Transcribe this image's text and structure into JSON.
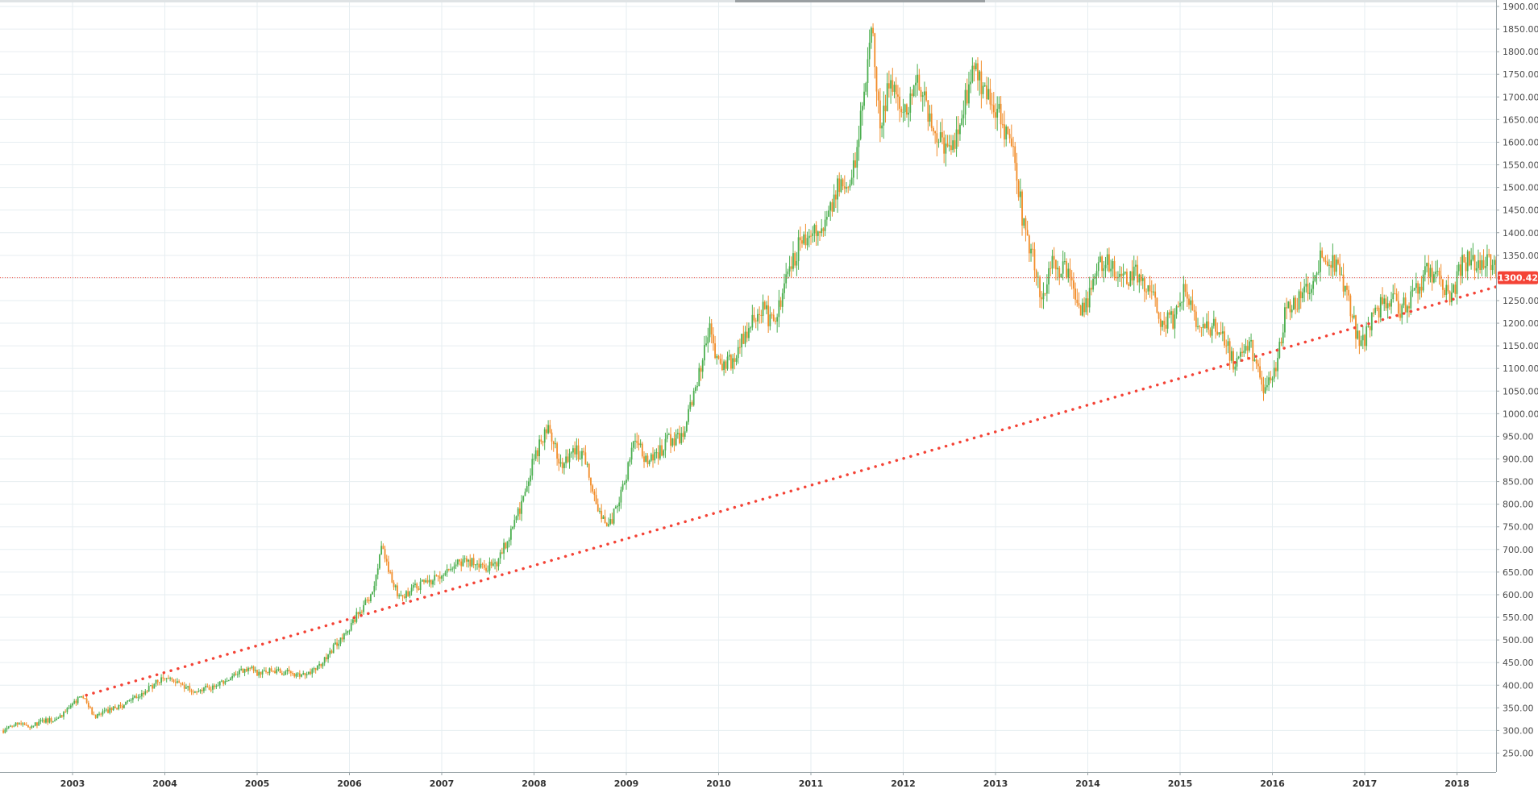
{
  "chart_data": {
    "type": "candlestick",
    "title": "",
    "xlabel": "",
    "ylabel": "",
    "x_range": [
      2002.25,
      2018.55
    ],
    "ylim": [
      210,
      1910
    ],
    "y_ticks": [
      "1900.00",
      "1850.00",
      "1800.00",
      "1750.00",
      "1700.00",
      "1650.00",
      "1600.00",
      "1550.00",
      "1500.00",
      "1450.00",
      "1400.00",
      "1350.00",
      "1300.00",
      "1250.00",
      "1200.00",
      "1150.00",
      "1100.00",
      "1050.00",
      "1000.00",
      "950.00",
      "900.00",
      "850.00",
      "800.00",
      "750.00",
      "700.00",
      "650.00",
      "600.00",
      "550.00",
      "500.00",
      "450.00",
      "400.00",
      "350.00",
      "300.00",
      "250.00"
    ],
    "x_ticks": [
      "2003",
      "2004",
      "2005",
      "2006",
      "2007",
      "2008",
      "2009",
      "2010",
      "2011",
      "2012",
      "2013",
      "2014",
      "2015",
      "2016",
      "2017",
      "2018"
    ],
    "grid": true,
    "colors": {
      "up": "#4caf50",
      "down": "#f28c28",
      "trendline": "#f44336",
      "price_line": "#f44336"
    },
    "price_points": [
      [
        2002.25,
        300
      ],
      [
        2002.4,
        318
      ],
      [
        2002.55,
        310
      ],
      [
        2002.7,
        322
      ],
      [
        2002.85,
        325
      ],
      [
        2003.0,
        358
      ],
      [
        2003.1,
        375
      ],
      [
        2003.25,
        330
      ],
      [
        2003.4,
        345
      ],
      [
        2003.55,
        355
      ],
      [
        2003.75,
        380
      ],
      [
        2003.9,
        405
      ],
      [
        2004.0,
        420
      ],
      [
        2004.15,
        405
      ],
      [
        2004.3,
        390
      ],
      [
        2004.5,
        395
      ],
      [
        2004.7,
        412
      ],
      [
        2004.9,
        440
      ],
      [
        2005.0,
        428
      ],
      [
        2005.2,
        432
      ],
      [
        2005.4,
        424
      ],
      [
        2005.6,
        430
      ],
      [
        2005.75,
        462
      ],
      [
        2005.95,
        515
      ],
      [
        2006.1,
        560
      ],
      [
        2006.25,
        600
      ],
      [
        2006.35,
        715
      ],
      [
        2006.45,
        640
      ],
      [
        2006.55,
        590
      ],
      [
        2006.7,
        618
      ],
      [
        2006.9,
        630
      ],
      [
        2007.1,
        665
      ],
      [
        2007.25,
        675
      ],
      [
        2007.45,
        660
      ],
      [
        2007.6,
        670
      ],
      [
        2007.75,
        740
      ],
      [
        2007.9,
        820
      ],
      [
        2008.0,
        900
      ],
      [
        2008.15,
        980
      ],
      [
        2008.3,
        880
      ],
      [
        2008.45,
        920
      ],
      [
        2008.55,
        900
      ],
      [
        2008.65,
        820
      ],
      [
        2008.8,
        740
      ],
      [
        2008.95,
        830
      ],
      [
        2009.1,
        940
      ],
      [
        2009.25,
        890
      ],
      [
        2009.45,
        940
      ],
      [
        2009.6,
        950
      ],
      [
        2009.75,
        1050
      ],
      [
        2009.9,
        1190
      ],
      [
        2010.0,
        1110
      ],
      [
        2010.15,
        1120
      ],
      [
        2010.3,
        1180
      ],
      [
        2010.45,
        1240
      ],
      [
        2010.6,
        1195
      ],
      [
        2010.75,
        1300
      ],
      [
        2010.9,
        1390
      ],
      [
        2011.0,
        1390
      ],
      [
        2011.15,
        1430
      ],
      [
        2011.3,
        1500
      ],
      [
        2011.45,
        1530
      ],
      [
        2011.6,
        1720
      ],
      [
        2011.65,
        1880
      ],
      [
        2011.75,
        1620
      ],
      [
        2011.85,
        1740
      ],
      [
        2012.0,
        1650
      ],
      [
        2012.15,
        1740
      ],
      [
        2012.3,
        1640
      ],
      [
        2012.45,
        1590
      ],
      [
        2012.6,
        1610
      ],
      [
        2012.75,
        1770
      ],
      [
        2012.9,
        1700
      ],
      [
        2013.0,
        1680
      ],
      [
        2013.1,
        1620
      ],
      [
        2013.2,
        1570
      ],
      [
        2013.3,
        1420
      ],
      [
        2013.4,
        1350
      ],
      [
        2013.5,
        1250
      ],
      [
        2013.6,
        1330
      ],
      [
        2013.75,
        1320
      ],
      [
        2013.95,
        1220
      ],
      [
        2014.1,
        1320
      ],
      [
        2014.2,
        1340
      ],
      [
        2014.35,
        1295
      ],
      [
        2014.5,
        1310
      ],
      [
        2014.65,
        1285
      ],
      [
        2014.8,
        1205
      ],
      [
        2014.95,
        1210
      ],
      [
        2015.05,
        1280
      ],
      [
        2015.2,
        1180
      ],
      [
        2015.35,
        1195
      ],
      [
        2015.5,
        1160
      ],
      [
        2015.6,
        1100
      ],
      [
        2015.75,
        1160
      ],
      [
        2015.9,
        1060
      ],
      [
        2016.05,
        1110
      ],
      [
        2016.15,
        1240
      ],
      [
        2016.3,
        1250
      ],
      [
        2016.45,
        1290
      ],
      [
        2016.55,
        1360
      ],
      [
        2016.7,
        1330
      ],
      [
        2016.8,
        1270
      ],
      [
        2016.95,
        1140
      ],
      [
        2017.1,
        1220
      ],
      [
        2017.25,
        1260
      ],
      [
        2017.4,
        1230
      ],
      [
        2017.55,
        1270
      ],
      [
        2017.7,
        1320
      ],
      [
        2017.85,
        1280
      ],
      [
        2017.95,
        1260
      ],
      [
        2018.05,
        1335
      ],
      [
        2018.2,
        1340
      ],
      [
        2018.35,
        1330
      ],
      [
        2018.5,
        1300
      ]
    ],
    "trendline": {
      "from": [
        2003.15,
        378
      ],
      "to": [
        2018.45,
        1282
      ]
    },
    "current_price": 1300.42,
    "current_price_label": "1300.42"
  }
}
